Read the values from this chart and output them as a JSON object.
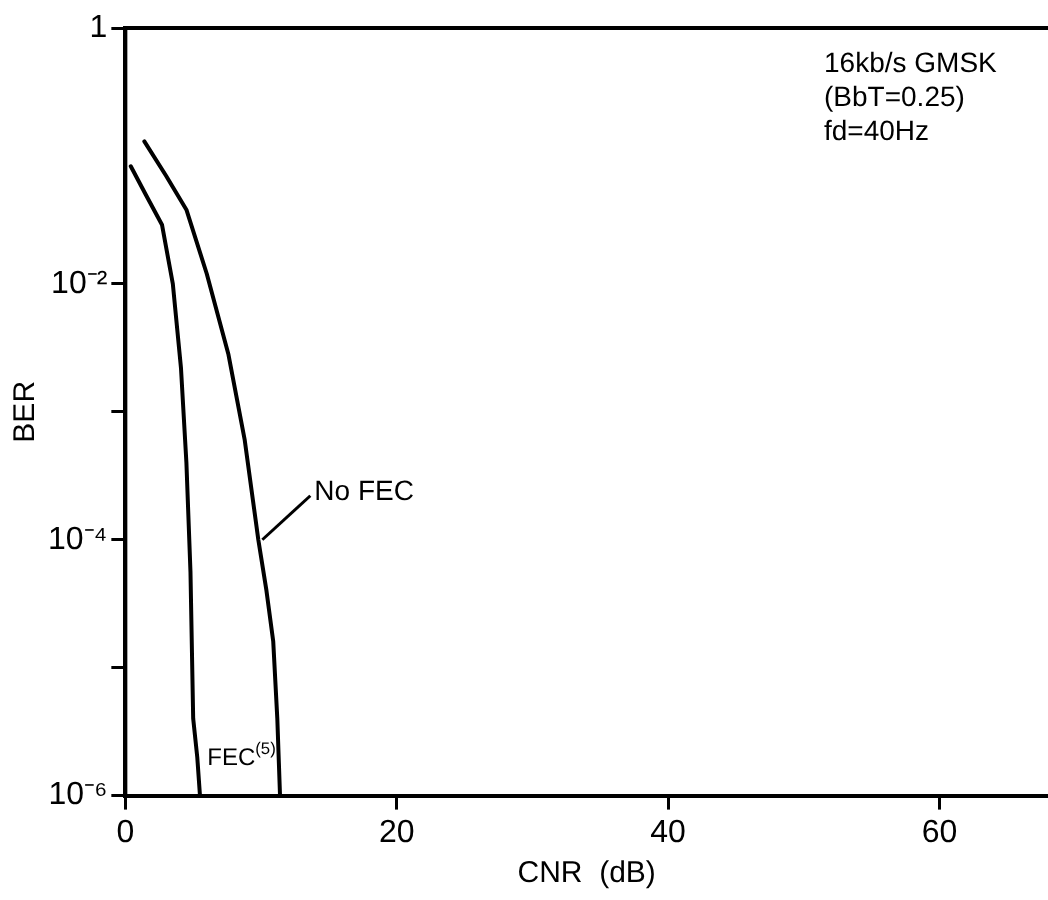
{
  "chart_data": {
    "type": "line",
    "xlabel": "CNR  (dB)",
    "ylabel": "BER",
    "log": "y",
    "grid": false,
    "legend": false,
    "marker": "none",
    "line_style": "solid",
    "xlim": [
      0,
      68
    ],
    "xticks": [
      0,
      20,
      40,
      60
    ],
    "ylim": [
      1e-06,
      1
    ],
    "yticks": [
      1,
      {
        "value": 0.01,
        "label": "10⁻²"
      },
      {
        "value": 0.001,
        "label": null
      },
      {
        "value": 0.0001,
        "label": "10⁻⁴"
      },
      {
        "value": 1e-05,
        "label": null
      },
      {
        "value": 1e-06,
        "label": "10⁻⁶"
      }
    ],
    "series": [
      {
        "color": "#000000",
        "x": [
          1.4,
          3,
          4.5,
          6,
          7.6,
          8.8,
          9.8,
          10.4,
          10.9,
          11.2,
          11.4
        ],
        "values": [
          0.13,
          0.07,
          0.038,
          0.012,
          0.0028,
          0.0006,
          0.0001,
          4e-05,
          1.6e-05,
          4e-06,
          1e-06
        ]
      },
      {
        "color": "#000000",
        "x": [
          0.4,
          1.5,
          2.7,
          3.5,
          4.1,
          4.5,
          4.8,
          5,
          5.3,
          5.5
        ],
        "values": [
          0.083,
          0.05,
          0.029,
          0.01,
          0.0022,
          0.0004,
          5.6e-05,
          4e-06,
          2e-06,
          1e-06
        ]
      }
    ],
    "annotations": [
      "16kb/s GMSK",
      "(BbT=0.25)",
      "fd=40Hz",
      {
        "text": "No FEC",
        "x": 9.8,
        "y": 0.0001
      },
      {
        "text": "FEC$^{(5)}$",
        "x": 5.3,
        "y": 2e-06
      }
    ]
  }
}
